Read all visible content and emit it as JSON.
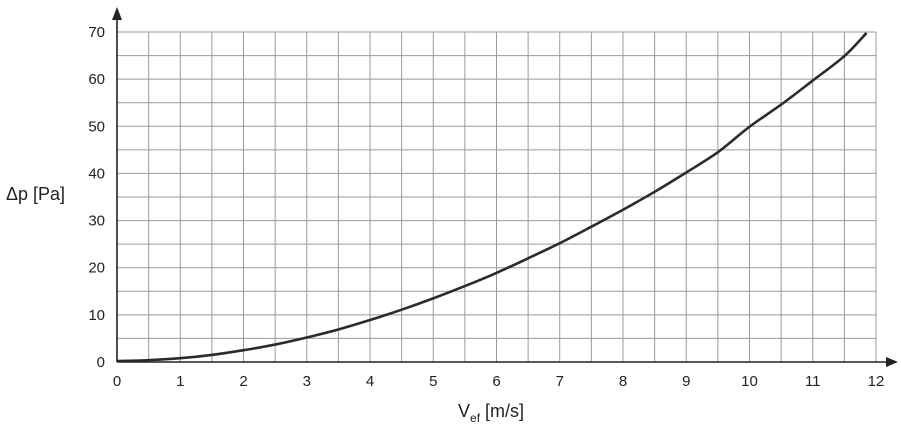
{
  "chart_data": {
    "type": "line",
    "title": "",
    "xlabel": "V",
    "xlabel_sub": "ef",
    "xlabel_unit": " [m/s]",
    "ylabel": "Δp [Pa]",
    "xlim": [
      0,
      12
    ],
    "ylim": [
      0,
      70
    ],
    "x_ticks": [
      0,
      1,
      2,
      3,
      4,
      5,
      6,
      7,
      8,
      9,
      10,
      11,
      12
    ],
    "y_ticks": [
      0,
      10,
      20,
      30,
      40,
      50,
      60,
      70
    ],
    "x_minor_step": 0.5,
    "y_minor_step": 5,
    "grid": true,
    "series": [
      {
        "color": "#2b2b2b",
        "x": [
          0,
          0.5,
          1,
          1.5,
          2,
          2.5,
          3,
          3.5,
          4,
          4.5,
          5,
          5.5,
          6,
          6.5,
          7,
          7.5,
          8,
          8.5,
          9,
          9.5,
          10,
          10.5,
          11,
          11.5,
          11.85
        ],
        "y": [
          0.2,
          0.4,
          0.8,
          1.5,
          2.5,
          3.7,
          5.2,
          6.9,
          8.9,
          11.1,
          13.5,
          16.1,
          18.9,
          22.0,
          25.2,
          28.7,
          32.3,
          36.1,
          40.2,
          44.5,
          49.9,
          54.6,
          59.7,
          64.9,
          69.8
        ]
      }
    ]
  }
}
